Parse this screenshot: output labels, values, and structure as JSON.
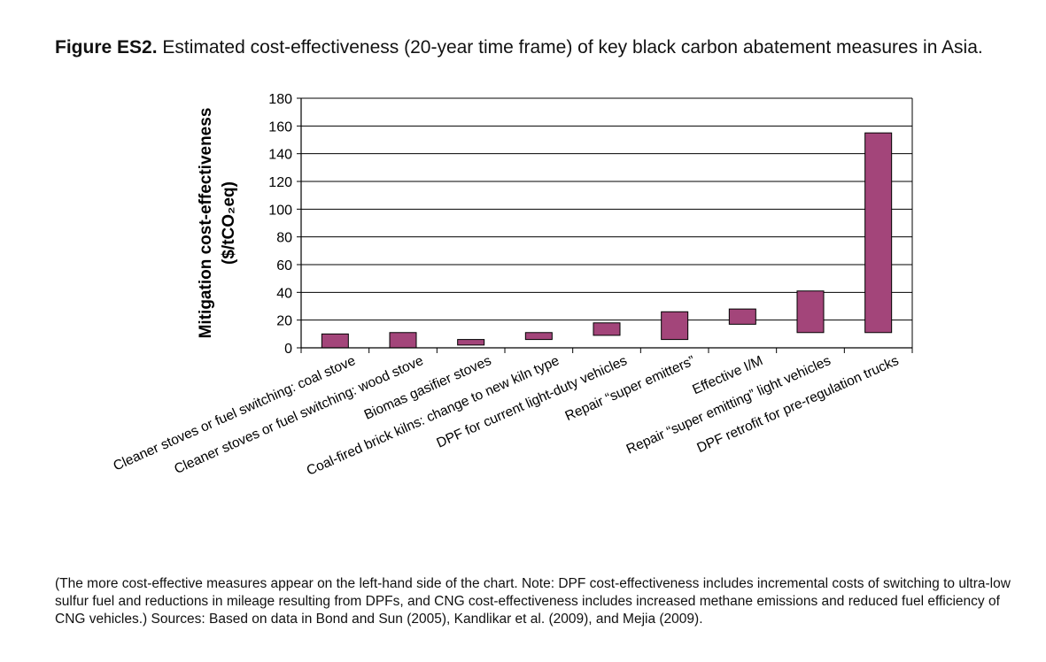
{
  "figure": {
    "label": "Figure ES2.",
    "caption": "Estimated cost-effectiveness (20-year time frame) of key black carbon abatement measures in Asia."
  },
  "chart_data": {
    "type": "bar",
    "subtype": "floating-range",
    "ylabel_line1": "Mitigation cost-effectiveness",
    "ylabel_line2": "($/tCO₂eq)",
    "ylim": [
      0,
      180
    ],
    "ytick_step": 20,
    "yticks": [
      "0",
      "20",
      "40",
      "60",
      "80",
      "100",
      "120",
      "140",
      "160",
      "180"
    ],
    "grid": true,
    "bar_color": "#a3457a",
    "categories": [
      "Cleaner stoves or fuel switching: coal stove",
      "Cleaner stoves or fuel switching: wood stove",
      "Biomas gasifier stoves",
      "Coal-fired brick kilns: change to new kiln type",
      "DPF for current light-duty vehicles",
      "Repair “super emitters”",
      "Effective I/M",
      "Repair “super emitting” light vehicles",
      "DPF retrofit for pre-regulation trucks"
    ],
    "low": [
      0,
      0,
      2,
      6,
      9,
      6,
      17,
      11,
      11
    ],
    "high": [
      10,
      11,
      6,
      11,
      18,
      26,
      28,
      41,
      155
    ]
  },
  "footnote": "(The more cost-effective measures appear on the left-hand side of the chart. Note: DPF cost-effectiveness includes incremental costs of switching to ultra-low sulfur fuel and reductions in mileage resulting from DPFs, and CNG cost-effectiveness includes increased methane emissions and reduced fuel efficiency of CNG vehicles.) Sources: Based on data in Bond and Sun (2005), Kandlikar et al. (2009), and Mejia (2009)."
}
